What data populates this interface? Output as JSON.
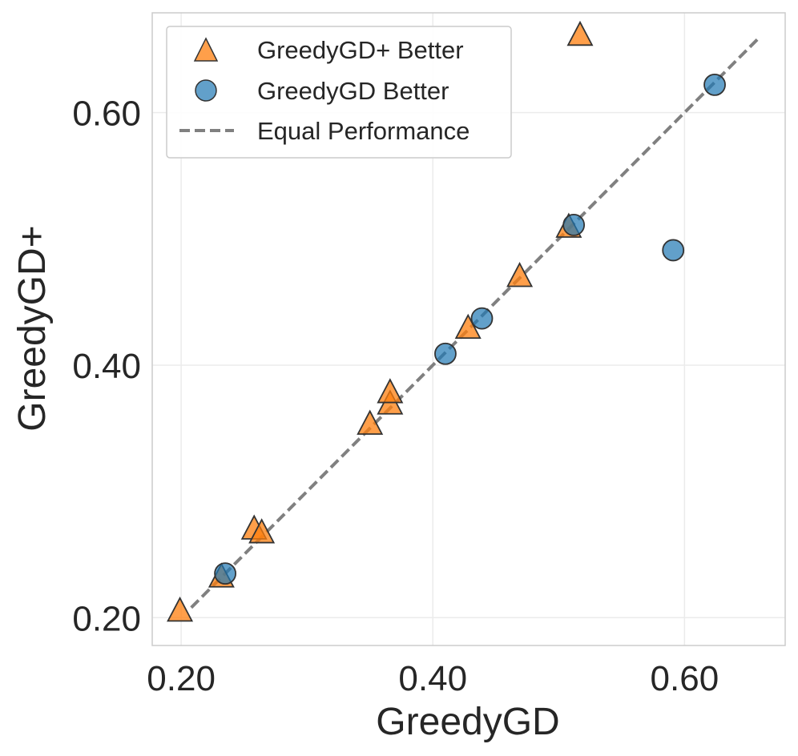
{
  "chart_data": {
    "type": "scatter",
    "title": "",
    "xlabel": "GreedyGD",
    "ylabel": "GreedyGD+",
    "xlim": [
      0.177,
      0.68
    ],
    "ylim": [
      0.178,
      0.679
    ],
    "xticks": [
      0.2,
      0.4,
      0.6
    ],
    "yticks": [
      0.2,
      0.4,
      0.6
    ],
    "xtick_labels": [
      "0.20",
      "0.40",
      "0.60"
    ],
    "ytick_labels": [
      "0.20",
      "0.40",
      "0.60"
    ],
    "grid": true,
    "legend_position": "top-left",
    "series": [
      {
        "name": "GreedyGD+ Better",
        "marker": "triangle",
        "color": "#ff7f0e",
        "points": [
          {
            "x": 0.199,
            "y": 0.206
          },
          {
            "x": 0.232,
            "y": 0.233
          },
          {
            "x": 0.258,
            "y": 0.271
          },
          {
            "x": 0.264,
            "y": 0.268
          },
          {
            "x": 0.35,
            "y": 0.354
          },
          {
            "x": 0.366,
            "y": 0.37
          },
          {
            "x": 0.366,
            "y": 0.379
          },
          {
            "x": 0.428,
            "y": 0.43
          },
          {
            "x": 0.469,
            "y": 0.471
          },
          {
            "x": 0.508,
            "y": 0.51
          },
          {
            "x": 0.517,
            "y": 0.662
          }
        ]
      },
      {
        "name": "GreedyGD Better",
        "marker": "circle",
        "color": "#1f77b4",
        "points": [
          {
            "x": 0.235,
            "y": 0.235
          },
          {
            "x": 0.41,
            "y": 0.409
          },
          {
            "x": 0.439,
            "y": 0.437
          },
          {
            "x": 0.512,
            "y": 0.511
          },
          {
            "x": 0.591,
            "y": 0.491
          },
          {
            "x": 0.624,
            "y": 0.622
          }
        ]
      }
    ],
    "reference_line": {
      "name": "Equal Performance",
      "x": [
        0.208,
        0.658
      ],
      "y": [
        0.208,
        0.658
      ],
      "style": "dashed",
      "color": "#808080"
    }
  }
}
